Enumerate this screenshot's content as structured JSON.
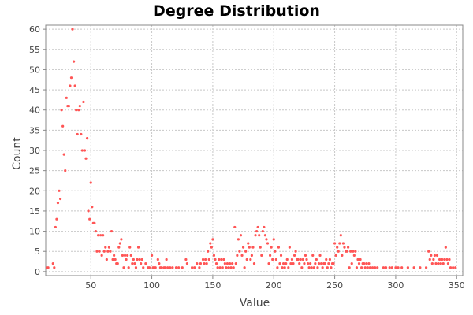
{
  "chart_data": {
    "type": "scatter",
    "title": "Degree Distribution",
    "xlabel": "Value",
    "ylabel": "Count",
    "xlim": [
      13,
      355
    ],
    "ylim": [
      -1,
      61
    ],
    "xticks": [
      50,
      100,
      150,
      200,
      250,
      300,
      350
    ],
    "yticks": [
      0,
      5,
      10,
      15,
      20,
      25,
      30,
      35,
      40,
      45,
      50,
      55,
      60
    ],
    "grid": true,
    "legend": "none",
    "point_color": "#ff5555",
    "points": [
      [
        14,
        1
      ],
      [
        15,
        1
      ],
      [
        19,
        2
      ],
      [
        20,
        1
      ],
      [
        21,
        11
      ],
      [
        22,
        13
      ],
      [
        23,
        17
      ],
      [
        24,
        20
      ],
      [
        25,
        18
      ],
      [
        26,
        40
      ],
      [
        27,
        36
      ],
      [
        28,
        29
      ],
      [
        29,
        25
      ],
      [
        30,
        43
      ],
      [
        31,
        41
      ],
      [
        32,
        41
      ],
      [
        33,
        46
      ],
      [
        34,
        48
      ],
      [
        35,
        60
      ],
      [
        36,
        52
      ],
      [
        37,
        46
      ],
      [
        38,
        40
      ],
      [
        39,
        34
      ],
      [
        40,
        40
      ],
      [
        41,
        41
      ],
      [
        42,
        34
      ],
      [
        43,
        30
      ],
      [
        44,
        42
      ],
      [
        45,
        30
      ],
      [
        46,
        28
      ],
      [
        47,
        33
      ],
      [
        48,
        15
      ],
      [
        49,
        13
      ],
      [
        50,
        22
      ],
      [
        51,
        16
      ],
      [
        52,
        12
      ],
      [
        53,
        12
      ],
      [
        54,
        10
      ],
      [
        55,
        5
      ],
      [
        56,
        9
      ],
      [
        57,
        5
      ],
      [
        58,
        9
      ],
      [
        59,
        4
      ],
      [
        60,
        9
      ],
      [
        61,
        5
      ],
      [
        62,
        6
      ],
      [
        63,
        3
      ],
      [
        64,
        5
      ],
      [
        65,
        6
      ],
      [
        66,
        5
      ],
      [
        67,
        10
      ],
      [
        68,
        3
      ],
      [
        69,
        4
      ],
      [
        70,
        3
      ],
      [
        71,
        2
      ],
      [
        72,
        2
      ],
      [
        73,
        6
      ],
      [
        74,
        7
      ],
      [
        75,
        8
      ],
      [
        76,
        4
      ],
      [
        77,
        1
      ],
      [
        78,
        4
      ],
      [
        79,
        3
      ],
      [
        80,
        4
      ],
      [
        81,
        1
      ],
      [
        82,
        6
      ],
      [
        83,
        4
      ],
      [
        84,
        2
      ],
      [
        85,
        3
      ],
      [
        86,
        2
      ],
      [
        87,
        1
      ],
      [
        88,
        3
      ],
      [
        89,
        6
      ],
      [
        90,
        3
      ],
      [
        91,
        2
      ],
      [
        92,
        3
      ],
      [
        93,
        1
      ],
      [
        95,
        2
      ],
      [
        97,
        1
      ],
      [
        98,
        1
      ],
      [
        100,
        4
      ],
      [
        101,
        1
      ],
      [
        102,
        1
      ],
      [
        103,
        1
      ],
      [
        105,
        3
      ],
      [
        106,
        2
      ],
      [
        107,
        1
      ],
      [
        108,
        1
      ],
      [
        110,
        1
      ],
      [
        111,
        1
      ],
      [
        112,
        3
      ],
      [
        113,
        1
      ],
      [
        115,
        1
      ],
      [
        117,
        1
      ],
      [
        120,
        1
      ],
      [
        122,
        1
      ],
      [
        125,
        1
      ],
      [
        128,
        3
      ],
      [
        129,
        2
      ],
      [
        133,
        1
      ],
      [
        135,
        1
      ],
      [
        137,
        2
      ],
      [
        139,
        1
      ],
      [
        140,
        2
      ],
      [
        142,
        3
      ],
      [
        143,
        2
      ],
      [
        144,
        3
      ],
      [
        145,
        2
      ],
      [
        146,
        5
      ],
      [
        147,
        3
      ],
      [
        148,
        7
      ],
      [
        149,
        6
      ],
      [
        150,
        8
      ],
      [
        151,
        4
      ],
      [
        152,
        3
      ],
      [
        153,
        2
      ],
      [
        154,
        1
      ],
      [
        155,
        3
      ],
      [
        156,
        1
      ],
      [
        157,
        3
      ],
      [
        158,
        1
      ],
      [
        159,
        3
      ],
      [
        160,
        2
      ],
      [
        161,
        1
      ],
      [
        162,
        2
      ],
      [
        163,
        1
      ],
      [
        164,
        2
      ],
      [
        165,
        1
      ],
      [
        166,
        2
      ],
      [
        167,
        1
      ],
      [
        168,
        11
      ],
      [
        169,
        2
      ],
      [
        170,
        4
      ],
      [
        171,
        8
      ],
      [
        172,
        5
      ],
      [
        173,
        9
      ],
      [
        174,
        4
      ],
      [
        175,
        6
      ],
      [
        176,
        1
      ],
      [
        177,
        5
      ],
      [
        178,
        3
      ],
      [
        179,
        7
      ],
      [
        180,
        6
      ],
      [
        181,
        3
      ],
      [
        182,
        4
      ],
      [
        183,
        6
      ],
      [
        184,
        2
      ],
      [
        185,
        9
      ],
      [
        186,
        10
      ],
      [
        187,
        11
      ],
      [
        188,
        9
      ],
      [
        189,
        6
      ],
      [
        190,
        4
      ],
      [
        191,
        10
      ],
      [
        192,
        11
      ],
      [
        193,
        9
      ],
      [
        194,
        8
      ],
      [
        195,
        7
      ],
      [
        196,
        2
      ],
      [
        197,
        4
      ],
      [
        198,
        6
      ],
      [
        199,
        3
      ],
      [
        200,
        8
      ],
      [
        201,
        5
      ],
      [
        202,
        3
      ],
      [
        203,
        1
      ],
      [
        204,
        6
      ],
      [
        205,
        2
      ],
      [
        206,
        4
      ],
      [
        207,
        1
      ],
      [
        208,
        2
      ],
      [
        209,
        1
      ],
      [
        210,
        2
      ],
      [
        211,
        3
      ],
      [
        212,
        1
      ],
      [
        213,
        6
      ],
      [
        214,
        2
      ],
      [
        215,
        3
      ],
      [
        216,
        2
      ],
      [
        217,
        4
      ],
      [
        218,
        5
      ],
      [
        219,
        3
      ],
      [
        220,
        3
      ],
      [
        221,
        2
      ],
      [
        222,
        3
      ],
      [
        223,
        1
      ],
      [
        224,
        3
      ],
      [
        225,
        2
      ],
      [
        226,
        4
      ],
      [
        227,
        3
      ],
      [
        228,
        2
      ],
      [
        229,
        1
      ],
      [
        230,
        2
      ],
      [
        231,
        1
      ],
      [
        232,
        4
      ],
      [
        233,
        1
      ],
      [
        234,
        2
      ],
      [
        235,
        3
      ],
      [
        236,
        1
      ],
      [
        237,
        2
      ],
      [
        238,
        4
      ],
      [
        239,
        2
      ],
      [
        240,
        1
      ],
      [
        241,
        2
      ],
      [
        242,
        2
      ],
      [
        243,
        3
      ],
      [
        244,
        1
      ],
      [
        245,
        2
      ],
      [
        246,
        3
      ],
      [
        247,
        1
      ],
      [
        248,
        2
      ],
      [
        249,
        2
      ],
      [
        250,
        7
      ],
      [
        251,
        4
      ],
      [
        252,
        6
      ],
      [
        253,
        5
      ],
      [
        254,
        7
      ],
      [
        255,
        9
      ],
      [
        256,
        4
      ],
      [
        257,
        7
      ],
      [
        258,
        6
      ],
      [
        259,
        5
      ],
      [
        260,
        5
      ],
      [
        261,
        6
      ],
      [
        262,
        1
      ],
      [
        263,
        5
      ],
      [
        264,
        2
      ],
      [
        265,
        5
      ],
      [
        266,
        4
      ],
      [
        267,
        5
      ],
      [
        268,
        1
      ],
      [
        269,
        3
      ],
      [
        270,
        2
      ],
      [
        271,
        3
      ],
      [
        272,
        1
      ],
      [
        273,
        2
      ],
      [
        274,
        2
      ],
      [
        275,
        1
      ],
      [
        276,
        2
      ],
      [
        277,
        1
      ],
      [
        278,
        2
      ],
      [
        279,
        1
      ],
      [
        281,
        1
      ],
      [
        283,
        1
      ],
      [
        285,
        1
      ],
      [
        290,
        1
      ],
      [
        292,
        1
      ],
      [
        295,
        1
      ],
      [
        297,
        1
      ],
      [
        300,
        1
      ],
      [
        302,
        1
      ],
      [
        305,
        1
      ],
      [
        310,
        1
      ],
      [
        315,
        1
      ],
      [
        320,
        1
      ],
      [
        325,
        1
      ],
      [
        327,
        5
      ],
      [
        328,
        3
      ],
      [
        329,
        4
      ],
      [
        330,
        2
      ],
      [
        331,
        3
      ],
      [
        332,
        4
      ],
      [
        333,
        2
      ],
      [
        334,
        4
      ],
      [
        335,
        2
      ],
      [
        336,
        3
      ],
      [
        337,
        2
      ],
      [
        338,
        3
      ],
      [
        339,
        2
      ],
      [
        340,
        3
      ],
      [
        341,
        6
      ],
      [
        342,
        3
      ],
      [
        343,
        2
      ],
      [
        344,
        3
      ],
      [
        345,
        1
      ],
      [
        347,
        1
      ],
      [
        349,
        1
      ]
    ]
  }
}
